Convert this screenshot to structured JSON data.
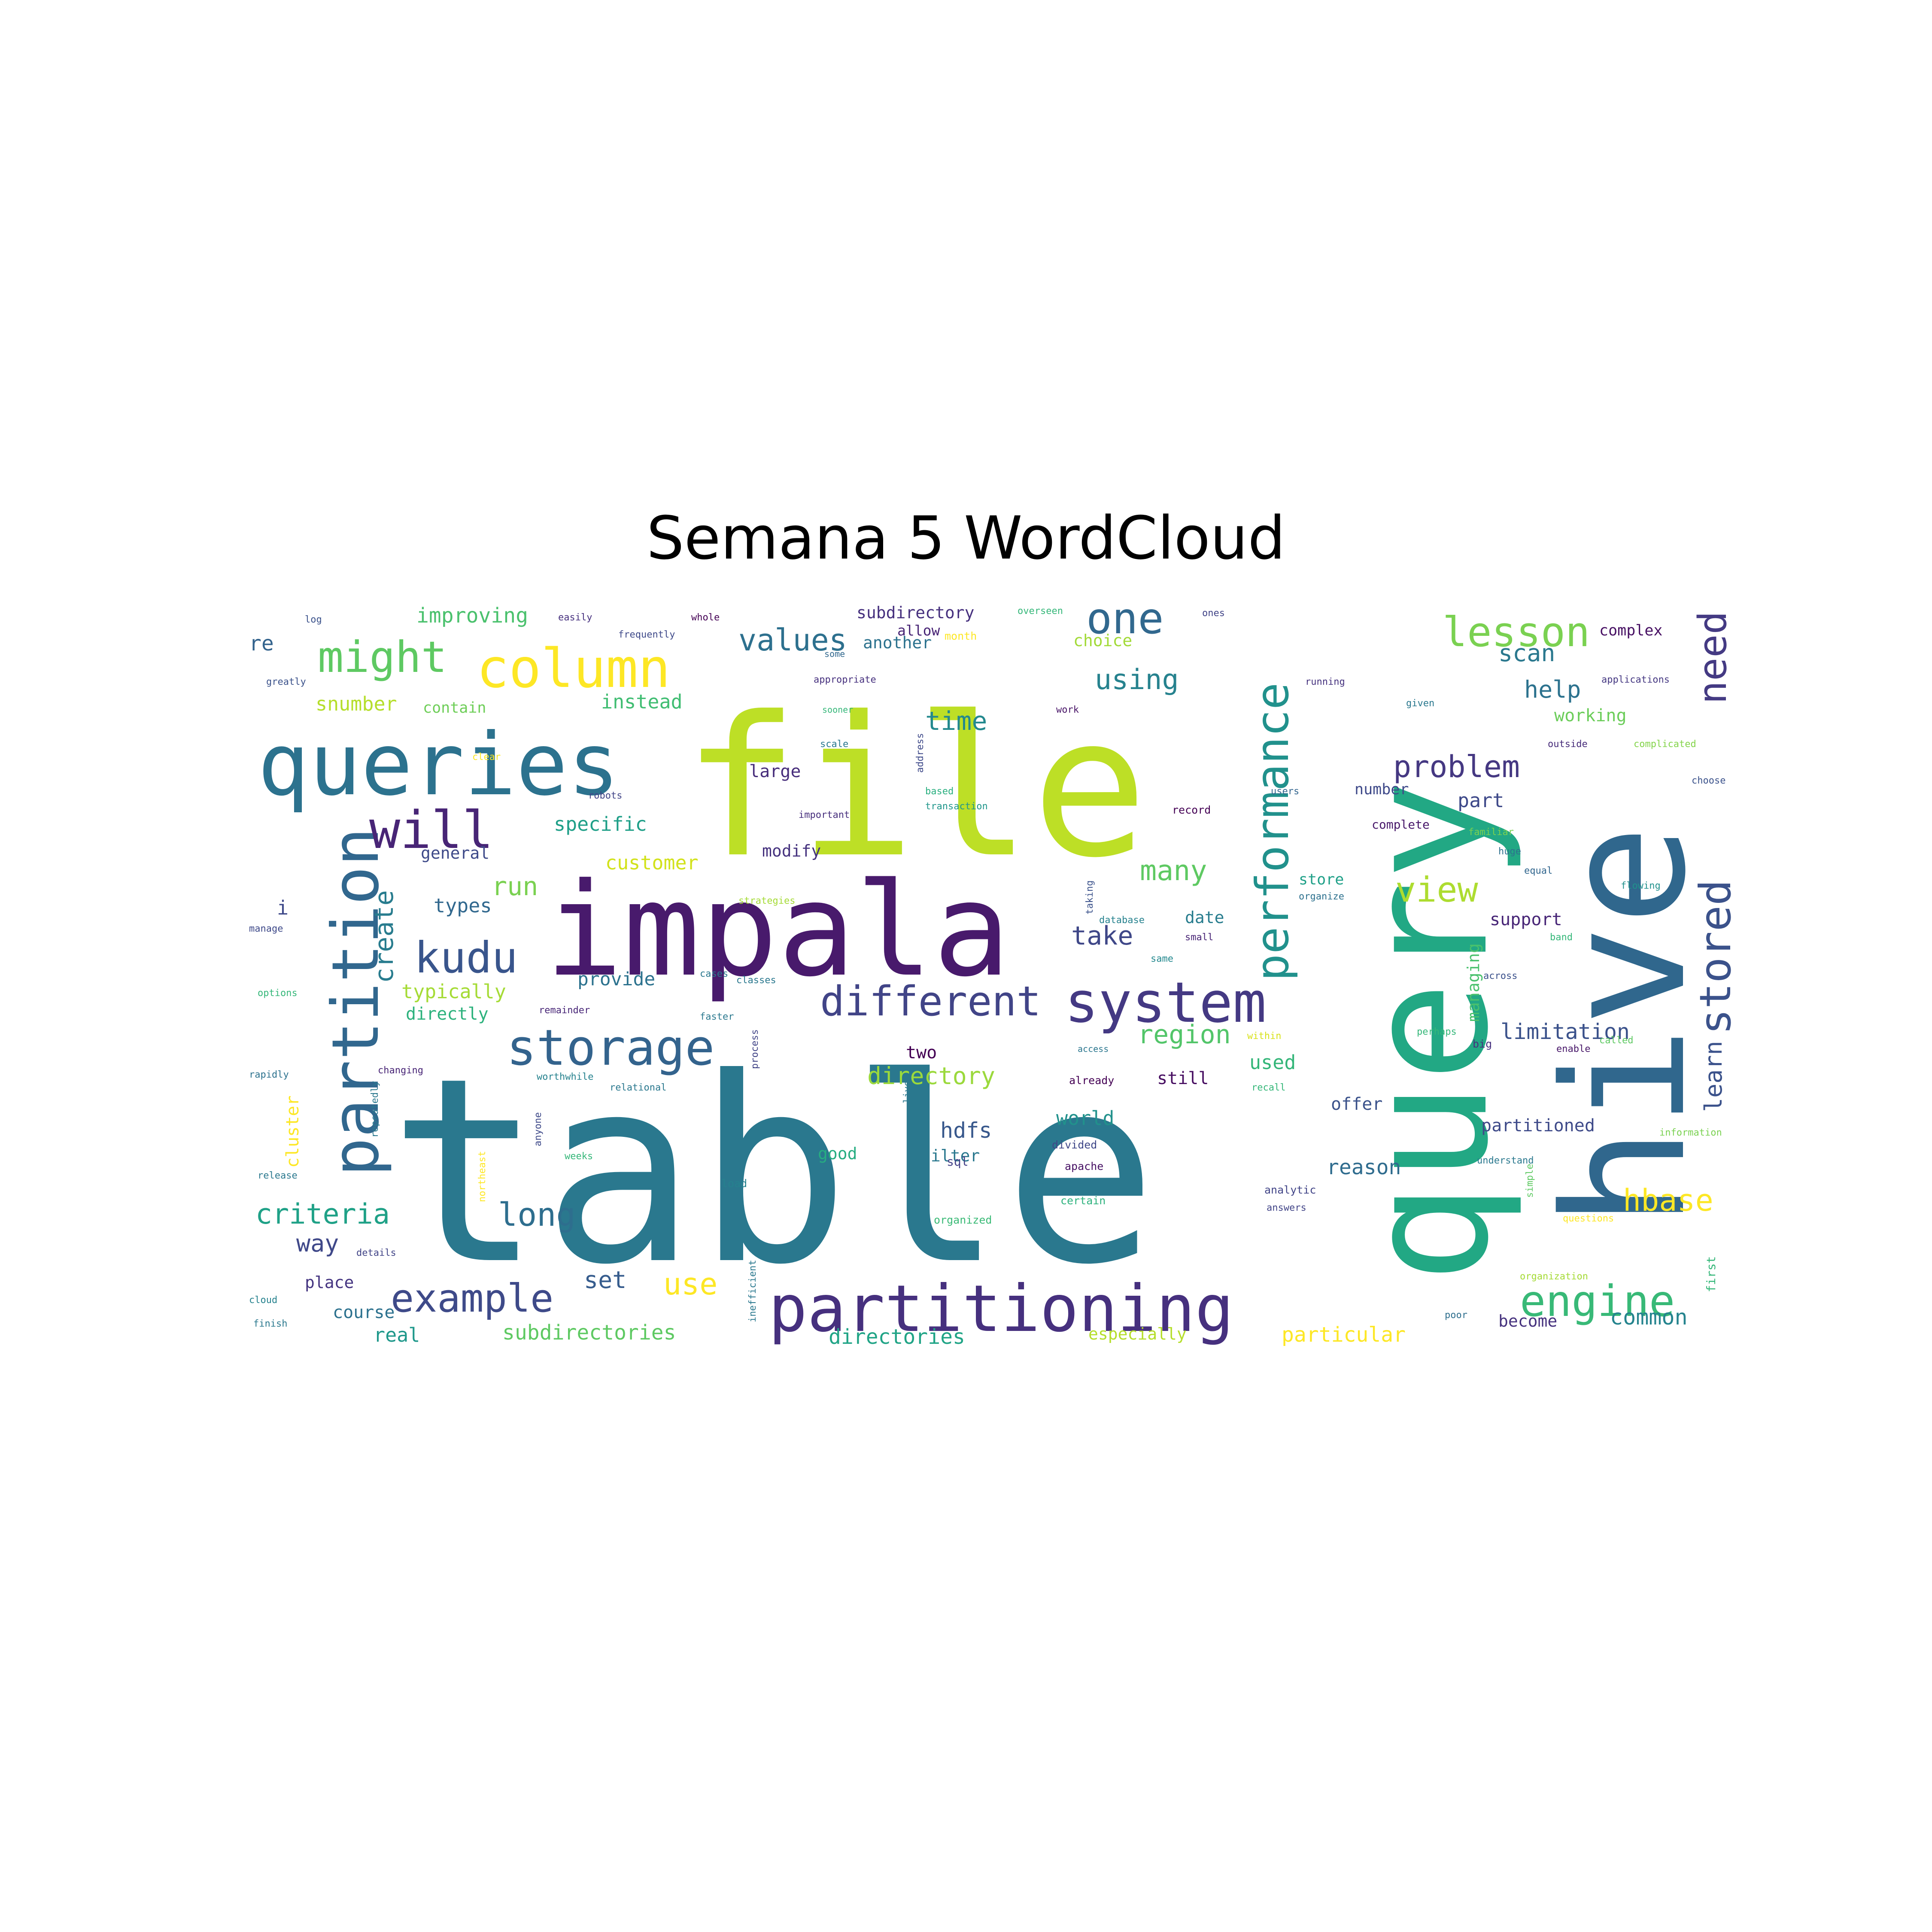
{
  "figure": {
    "title": "Semana 5 WordCloud"
  },
  "wordcloud": {
    "colormap": "viridis",
    "words": [
      {
        "text": "table",
        "color": "#2a788e"
      },
      {
        "text": "file",
        "color": "#bddf26"
      },
      {
        "text": "query",
        "color": "#22a884"
      },
      {
        "text": "hive",
        "color": "#30678d"
      },
      {
        "text": "impala",
        "color": "#481a6c"
      },
      {
        "text": "queries",
        "color": "#2c728e"
      },
      {
        "text": "partitioning",
        "color": "#46307e"
      },
      {
        "text": "partition",
        "color": "#31678e"
      },
      {
        "text": "system",
        "color": "#443983"
      },
      {
        "text": "column",
        "color": "#fde725"
      },
      {
        "text": "performance",
        "color": "#21918c"
      },
      {
        "text": "storage",
        "color": "#33638d"
      },
      {
        "text": "stored",
        "color": "#3b528b"
      },
      {
        "text": "different",
        "color": "#414487"
      },
      {
        "text": "will",
        "color": "#482576"
      },
      {
        "text": "need",
        "color": "#443a83"
      },
      {
        "text": "lesson",
        "color": "#7ad151"
      },
      {
        "text": "one",
        "color": "#31688e"
      },
      {
        "text": "engine",
        "color": "#38b977"
      },
      {
        "text": "kudu",
        "color": "#39558c"
      },
      {
        "text": "might",
        "color": "#5ec962"
      },
      {
        "text": "example",
        "color": "#3e4a89"
      },
      {
        "text": "hbase",
        "color": "#fde725"
      },
      {
        "text": "view",
        "color": "#addc30"
      },
      {
        "text": "problem",
        "color": "#453882"
      },
      {
        "text": "values",
        "color": "#2d708e"
      },
      {
        "text": "learn",
        "color": "#3b528b"
      },
      {
        "text": "create",
        "color": "#287c8e"
      },
      {
        "text": "criteria",
        "color": "#1fa187"
      },
      {
        "text": "long",
        "color": "#2e6e8e"
      },
      {
        "text": "many",
        "color": "#5ec962"
      },
      {
        "text": "region",
        "color": "#52c569"
      },
      {
        "text": "use",
        "color": "#fde725"
      },
      {
        "text": "using",
        "color": "#26828e"
      },
      {
        "text": "directories",
        "color": "#20a486"
      },
      {
        "text": "subdirectories",
        "color": "#5ec962"
      },
      {
        "text": "particular",
        "color": "#fde725"
      },
      {
        "text": "directory",
        "color": "#9bd93c"
      },
      {
        "text": "limitation",
        "color": "#3b528b"
      },
      {
        "text": "run",
        "color": "#7ad151"
      },
      {
        "text": "take",
        "color": "#3f4788"
      },
      {
        "text": "time",
        "color": "#23898e"
      },
      {
        "text": "scan",
        "color": "#2a788e"
      },
      {
        "text": "help",
        "color": "#2c728e"
      },
      {
        "text": "hdfs",
        "color": "#38588c"
      },
      {
        "text": "world",
        "color": "#21918c"
      },
      {
        "text": "common",
        "color": "#25848e"
      },
      {
        "text": "reason",
        "color": "#2f6c8e"
      },
      {
        "text": "specific",
        "color": "#1f9f88"
      },
      {
        "text": "typically",
        "color": "#a5db36"
      },
      {
        "text": "types",
        "color": "#31688e"
      },
      {
        "text": "snumber",
        "color": "#b5de2b"
      },
      {
        "text": "improving",
        "color": "#4ac16d"
      },
      {
        "text": "instead",
        "color": "#40bd72"
      },
      {
        "text": "customer",
        "color": "#d2e21b"
      },
      {
        "text": "modify",
        "color": "#46337f"
      },
      {
        "text": "large",
        "color": "#472d7b"
      },
      {
        "text": "part",
        "color": "#3e4989"
      },
      {
        "text": "working",
        "color": "#6ccd5a"
      },
      {
        "text": "provide",
        "color": "#2c728e"
      },
      {
        "text": "way",
        "color": "#3f4889"
      },
      {
        "text": "set",
        "color": "#365c8d"
      },
      {
        "text": "course",
        "color": "#2c718e"
      },
      {
        "text": "real",
        "color": "#1f988b"
      },
      {
        "text": "especially",
        "color": "#b5de2b"
      },
      {
        "text": "become",
        "color": "#46327e"
      },
      {
        "text": "used",
        "color": "#34b679"
      },
      {
        "text": "support",
        "color": "#482677"
      },
      {
        "text": "partitioned",
        "color": "#3e4a89"
      },
      {
        "text": "two",
        "color": "#440154"
      },
      {
        "text": "still",
        "color": "#470e61"
      },
      {
        "text": "offer",
        "color": "#3b528b"
      },
      {
        "text": "filter",
        "color": "#2a788e"
      },
      {
        "text": "good",
        "color": "#26ad81"
      },
      {
        "text": "managing",
        "color": "#4ac16d"
      },
      {
        "text": "date",
        "color": "#287d8e"
      },
      {
        "text": "store",
        "color": "#1fa088"
      },
      {
        "text": "re",
        "color": "#33638d"
      },
      {
        "text": "place",
        "color": "#453581"
      },
      {
        "text": "general",
        "color": "#3e4a89"
      },
      {
        "text": "directly",
        "color": "#2db27d"
      },
      {
        "text": "subdirectory",
        "color": "#46307e"
      },
      {
        "text": "another",
        "color": "#2c728e"
      },
      {
        "text": "allow",
        "color": "#482475"
      },
      {
        "text": "choice",
        "color": "#a2da37"
      },
      {
        "text": "complex",
        "color": "#471063"
      },
      {
        "text": "contain",
        "color": "#6ece58"
      },
      {
        "text": "number",
        "color": "#3e4989"
      },
      {
        "text": "complete",
        "color": "#48186a"
      },
      {
        "text": "record",
        "color": "#440154"
      },
      {
        "text": "important",
        "color": "#472f7d"
      },
      {
        "text": "based",
        "color": "#29af7f"
      },
      {
        "text": "transaction",
        "color": "#1f968b"
      },
      {
        "text": "sql",
        "color": "#424086"
      },
      {
        "text": "apache",
        "color": "#471164"
      },
      {
        "text": "analytic",
        "color": "#414487"
      },
      {
        "text": "big",
        "color": "#46317e"
      },
      {
        "text": "first",
        "color": "#35b779"
      },
      {
        "text": "poor",
        "color": "#2e6f8e"
      },
      {
        "text": "load",
        "color": "#26818e"
      },
      {
        "text": "organized",
        "color": "#3aba76"
      },
      {
        "text": "certain",
        "color": "#2db27d"
      },
      {
        "text": "divided",
        "color": "#3f4788"
      },
      {
        "text": "already",
        "color": "#440154"
      },
      {
        "text": "access",
        "color": "#2a768e"
      },
      {
        "text": "within",
        "color": "#d8e219"
      },
      {
        "text": "recall",
        "color": "#35b779"
      },
      {
        "text": "enable",
        "color": "#481769"
      },
      {
        "text": "called",
        "color": "#5ec962"
      },
      {
        "text": "across",
        "color": "#3b518b"
      },
      {
        "text": "flowing",
        "color": "#21918c"
      },
      {
        "text": "equal",
        "color": "#31668e"
      },
      {
        "text": "huge",
        "color": "#2d718e"
      },
      {
        "text": "familiar",
        "color": "#7ad151"
      },
      {
        "text": "choose",
        "color": "#3b528b"
      },
      {
        "text": "complicated",
        "color": "#84d44b"
      },
      {
        "text": "outside",
        "color": "#472c7a"
      },
      {
        "text": "applications",
        "color": "#453882"
      },
      {
        "text": "given",
        "color": "#2a788e"
      },
      {
        "text": "running",
        "color": "#46337f"
      },
      {
        "text": "users",
        "color": "#32648e"
      },
      {
        "text": "organize",
        "color": "#2d718e"
      },
      {
        "text": "small",
        "color": "#482475"
      },
      {
        "text": "database",
        "color": "#26828e"
      },
      {
        "text": "same",
        "color": "#23888e"
      },
      {
        "text": "taking",
        "color": "#3b528b"
      },
      {
        "text": "address",
        "color": "#3e4989"
      },
      {
        "text": "scale",
        "color": "#2a788e"
      },
      {
        "text": "robots",
        "color": "#414487"
      },
      {
        "text": "some",
        "color": "#31688e"
      },
      {
        "text": "work",
        "color": "#481467"
      },
      {
        "text": "whole",
        "color": "#440154"
      },
      {
        "text": "easily",
        "color": "#46307e"
      },
      {
        "text": "frequently",
        "color": "#3e4989"
      },
      {
        "text": "log",
        "color": "#3b528b"
      },
      {
        "text": "greatly",
        "color": "#3b528b"
      },
      {
        "text": "manage",
        "color": "#3e4989"
      },
      {
        "text": "options",
        "color": "#35b779"
      },
      {
        "text": "rapidly",
        "color": "#2c728e"
      },
      {
        "text": "changing",
        "color": "#482576"
      },
      {
        "text": "worthwhile",
        "color": "#26828e"
      },
      {
        "text": "relational",
        "color": "#2a788e"
      },
      {
        "text": "faster",
        "color": "#2a788e"
      },
      {
        "text": "classes",
        "color": "#2a788e"
      },
      {
        "text": "remainder",
        "color": "#482677"
      },
      {
        "text": "release",
        "color": "#2a788e"
      },
      {
        "text": "cluster",
        "color": "#fde725"
      },
      {
        "text": "repeatedly",
        "color": "#2a788e"
      },
      {
        "text": "northeast",
        "color": "#fde725"
      },
      {
        "text": "anyone",
        "color": "#3e4989"
      },
      {
        "text": "weeks",
        "color": "#35b779"
      },
      {
        "text": "details",
        "color": "#414487"
      },
      {
        "text": "cloud",
        "color": "#26828e"
      },
      {
        "text": "finish",
        "color": "#2a788e"
      },
      {
        "text": "inefficient",
        "color": "#2a788e"
      },
      {
        "text": "process",
        "color": "#414487"
      },
      {
        "text": "lives",
        "color": "#2a788e"
      },
      {
        "text": "strategies",
        "color": "#a5db36"
      },
      {
        "text": "appropriate",
        "color": "#46307e"
      },
      {
        "text": "sooner",
        "color": "#35b779"
      },
      {
        "text": "overseen",
        "color": "#35b779"
      },
      {
        "text": "ones",
        "color": "#414487"
      },
      {
        "text": "month",
        "color": "#fde725"
      },
      {
        "text": "simple",
        "color": "#5ec962"
      },
      {
        "text": "understand",
        "color": "#2a788e"
      },
      {
        "text": "answers",
        "color": "#414487"
      },
      {
        "text": "perhaps",
        "color": "#35b779"
      },
      {
        "text": "organization",
        "color": "#a5db36"
      },
      {
        "text": "questions",
        "color": "#fde725"
      },
      {
        "text": "information",
        "color": "#7ad151"
      },
      {
        "text": "cases",
        "color": "#2a788e"
      },
      {
        "text": "clear",
        "color": "#fde725"
      },
      {
        "text": "band",
        "color": "#35b779"
      },
      {
        "text": "i",
        "color": "#3e4989"
      }
    ]
  }
}
